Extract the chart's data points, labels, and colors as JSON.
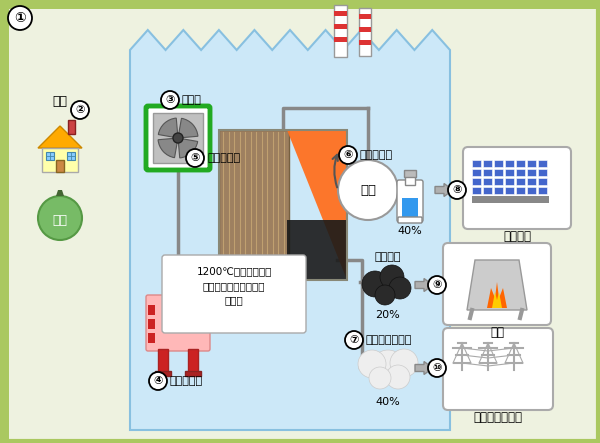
{
  "bg_outer": "#eef2e0",
  "bg_inner": "#cce8f8",
  "border_outer": "#aac860",
  "border_inner": "#88c0e0",
  "label2_text": "家庭",
  "label3_text": "破砕機",
  "label4_text": "塩ビ選別機",
  "label5_text": "コークス炉",
  "label6_text": "炭化水素油",
  "label6_sub": "石炭",
  "label6_pct": "40%",
  "label7_text": "コークス炉ガス",
  "label7_pct": "40%",
  "label8_text": "化成工場",
  "label9_text": "高炉",
  "label9_sub": "コークス",
  "label9_pct": "20%",
  "label10_text": "発電などに利用",
  "coke_desc": "1200℃の無酸素状態\nにして、プラスチック\nを分解",
  "gomi_text": "ごみ"
}
